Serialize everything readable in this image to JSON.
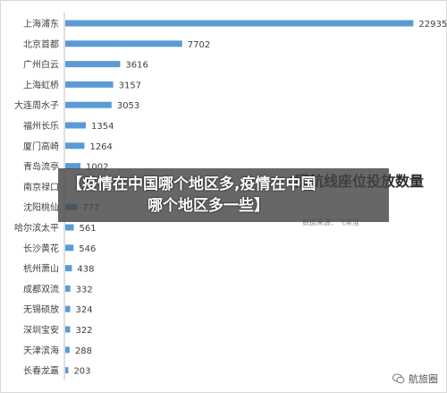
{
  "chart_data": {
    "type": "bar",
    "orientation": "horizontal",
    "categories": [
      "上海浦东",
      "北京首都",
      "广州白云",
      "上海虹桥",
      "大连周水子",
      "福州长乐",
      "厦门高崎",
      "青岛流亭",
      "南京禄口",
      "沈阳桃仙",
      "哈尔滨太平",
      "长沙黄花",
      "杭州萧山",
      "成都双流",
      "无锡硕放",
      "深圳宝安",
      "天津滨海",
      "长春龙嘉"
    ],
    "values": [
      22935,
      7702,
      3616,
      3157,
      3053,
      1354,
      1264,
      1002,
      null,
      777,
      561,
      546,
      438,
      332,
      324,
      322,
      288,
      203
    ],
    "value_labels": [
      "22935",
      "7702",
      "3616",
      "3157",
      "3053",
      "1354",
      "1264",
      "1002",
      "",
      "777",
      "561",
      "546",
      "438",
      "332",
      "324",
      "322",
      "288",
      "203"
    ],
    "xlim": [
      0,
      24500
    ],
    "bar_color": "#5b9bd5",
    "grid": false,
    "title": "国航线座位投放数量",
    "source": "数据来源：飞常准"
  },
  "banner": {
    "line1": "【疫情在中国哪个地区多,疫情在中国",
    "line2": "哪个地区多一些】"
  },
  "watermark": {
    "text": "航旅圈"
  }
}
